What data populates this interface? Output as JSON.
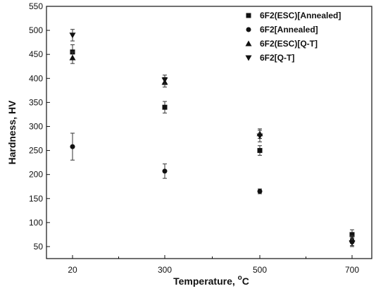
{
  "chart_data": {
    "type": "scatter",
    "title": "",
    "xlabel": "Temperature, ",
    "xlabel_sup": "o",
    "xlabel_unit": "C",
    "ylabel": "Hardness, HV",
    "categories": [
      "20",
      "300",
      "500",
      "700"
    ],
    "ylim": [
      25,
      550
    ],
    "yticks": [
      50,
      100,
      150,
      200,
      250,
      300,
      350,
      400,
      450,
      500,
      550
    ],
    "grid": false,
    "legend_position": "top-right",
    "series": [
      {
        "name": "6F2(ESC)[Annealed]",
        "marker": "square",
        "values": [
          455,
          340,
          250,
          75
        ],
        "errors": [
          15,
          12,
          10,
          10
        ]
      },
      {
        "name": "6F2[Annealed]",
        "marker": "circle",
        "values": [
          258,
          207,
          165,
          60
        ],
        "errors": [
          28,
          15,
          5,
          8
        ]
      },
      {
        "name": "6F2(ESC)[Q-T]",
        "marker": "triangle-up",
        "values": [
          443,
          392,
          285,
          65
        ],
        "errors": [
          12,
          10,
          10,
          8
        ]
      },
      {
        "name": "6F2[Q-T]",
        "marker": "triangle-down",
        "values": [
          490,
          397,
          280,
          58
        ],
        "errors": [
          12,
          10,
          12,
          8
        ]
      }
    ]
  }
}
